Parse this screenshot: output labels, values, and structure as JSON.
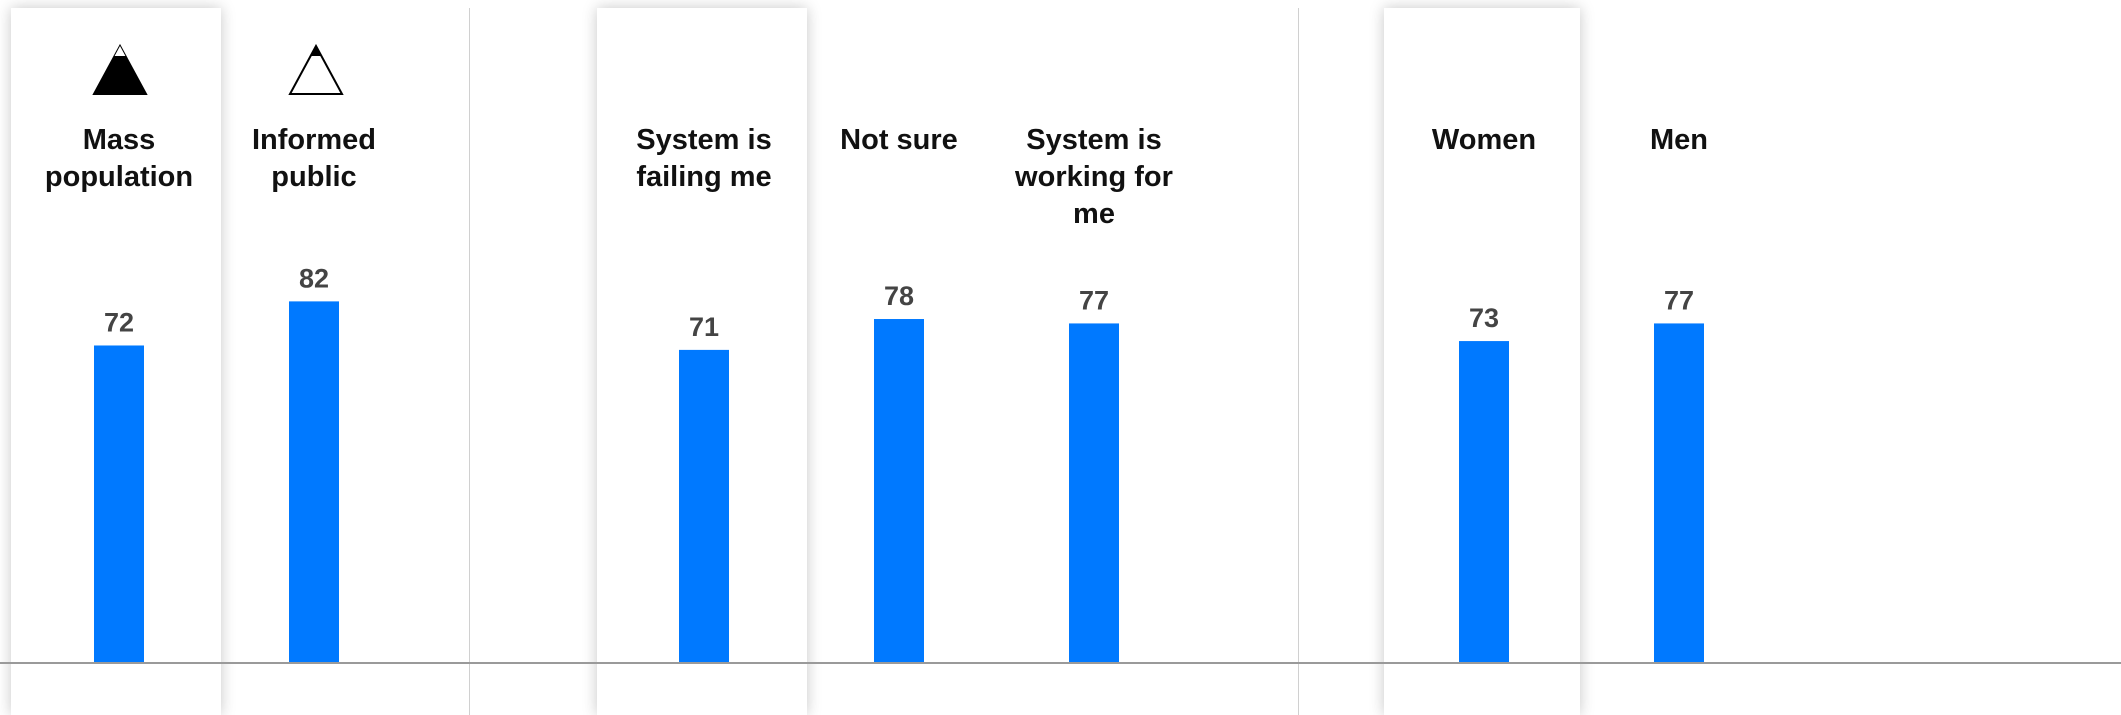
{
  "chart_data": {
    "type": "bar",
    "title": "",
    "xlabel": "",
    "ylabel": "",
    "ylim": [
      0,
      100
    ],
    "grid": false,
    "bar_color": "#0079FF",
    "groups": [
      {
        "categories": [
          "Mass\npopulation",
          "Informed\npublic"
        ],
        "values": [
          72,
          82
        ],
        "highlighted_index": 0,
        "markers": [
          "mountain-filled-icon",
          "mountain-outline-icon"
        ]
      },
      {
        "categories": [
          "System is\nfailing me",
          "Not sure",
          "System is\nworking for\nme"
        ],
        "values": [
          71,
          78,
          77
        ],
        "highlighted_index": 0
      },
      {
        "categories": [
          "Women",
          "Men"
        ],
        "values": [
          73,
          77
        ],
        "highlighted_index": 0
      }
    ]
  }
}
